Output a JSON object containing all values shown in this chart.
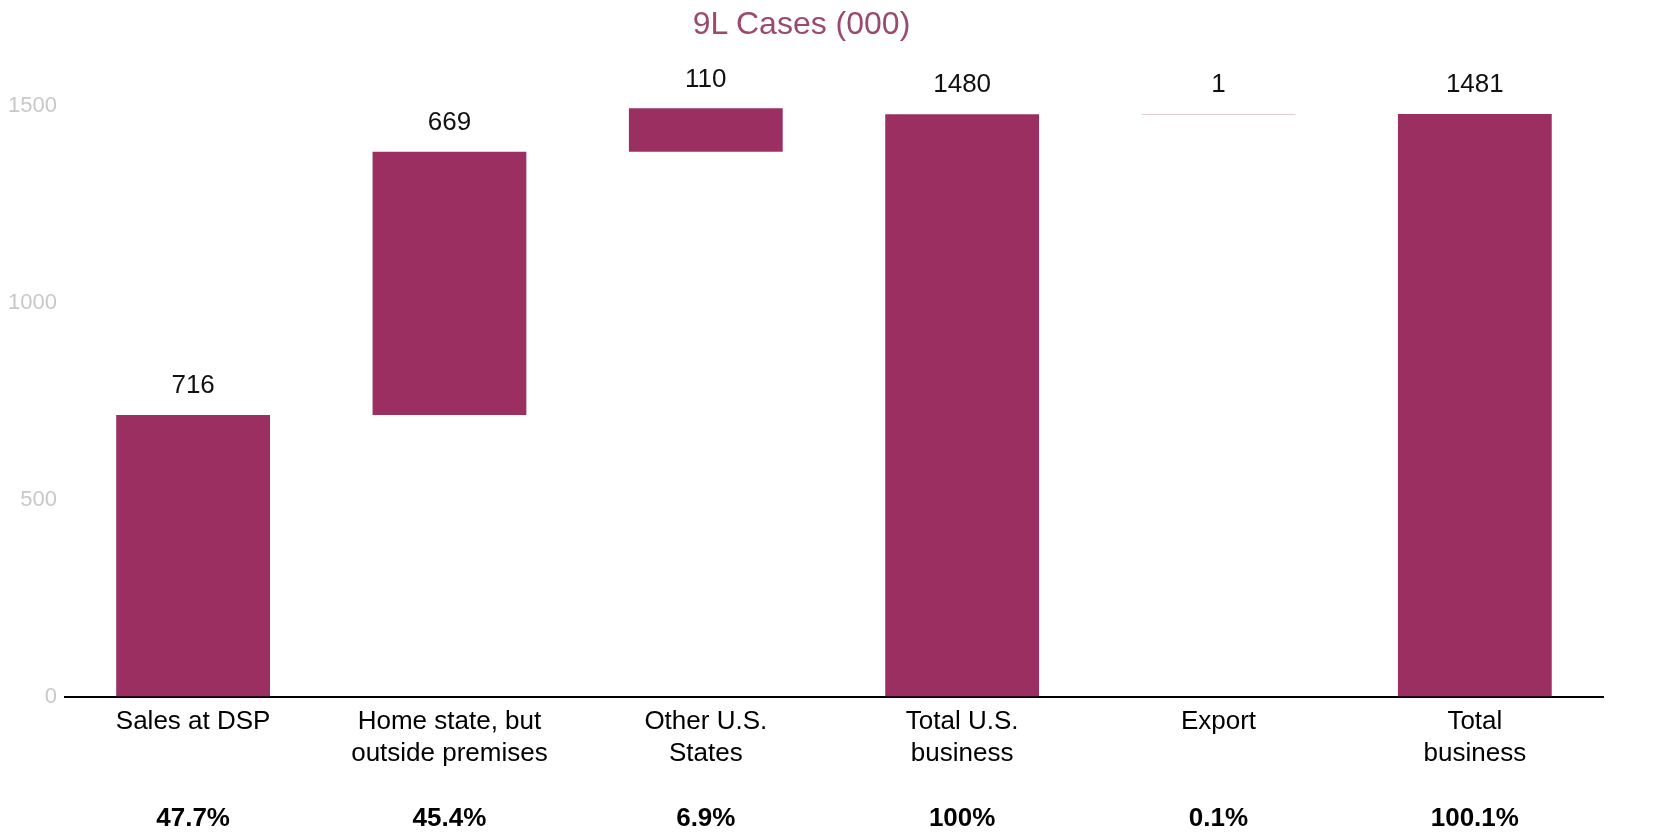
{
  "chart_data": {
    "type": "bar",
    "title": "9L Cases (000)",
    "categories": [
      "Sales at DSP",
      "Home state, but outside premises",
      "Other U.S. States",
      "Total U.S. business",
      "Export",
      "Total business"
    ],
    "values": [
      716,
      669,
      110,
      1480,
      1,
      1481
    ],
    "base": [
      0,
      716,
      1385,
      0,
      1480,
      0
    ],
    "color": "#9b2f62",
    "value_labels": [
      "716",
      "669",
      "110",
      "1480",
      "1",
      "1481"
    ],
    "ylim": [
      0,
      1500
    ],
    "yticks": [
      0,
      500,
      1000,
      1500
    ],
    "grid": false,
    "annotations": [
      "47.7%",
      "45.4%",
      "6.9%",
      "100%",
      "0.1%",
      "100.1%"
    ]
  }
}
